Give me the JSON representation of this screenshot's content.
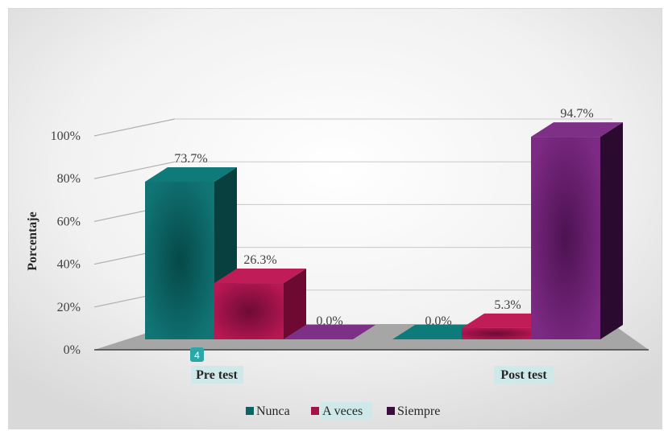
{
  "chart_data": {
    "type": "bar",
    "categories": [
      "Pre test",
      "Post test"
    ],
    "series": [
      {
        "name": "Nunca",
        "values": [
          73.7,
          0.0
        ],
        "labels": [
          "73.7%",
          "0.0%"
        ],
        "color": "#0b6464"
      },
      {
        "name": "A veces",
        "values": [
          26.3,
          5.3
        ],
        "labels": [
          "26.3%",
          "5.3%"
        ],
        "color": "#a1134a"
      },
      {
        "name": "Siempre",
        "values": [
          0.0,
          94.7
        ],
        "labels": [
          "0.0%",
          "94.7%"
        ],
        "color": "#6a1f70"
      }
    ],
    "ylabel": "Porcentaje",
    "xlabel": "",
    "yticks": [
      "0%",
      "20%",
      "40%",
      "60%",
      "80%",
      "100%"
    ],
    "ylim": [
      0,
      100
    ],
    "legend_position": "bottom",
    "badge": "4",
    "colors": {
      "nunca_side": "#08403f",
      "aveces_side": "#6e0a31",
      "siempre_side": "#2a0a2e",
      "floor": "#a6a6a6",
      "highlight": "#cfe9eb"
    }
  }
}
